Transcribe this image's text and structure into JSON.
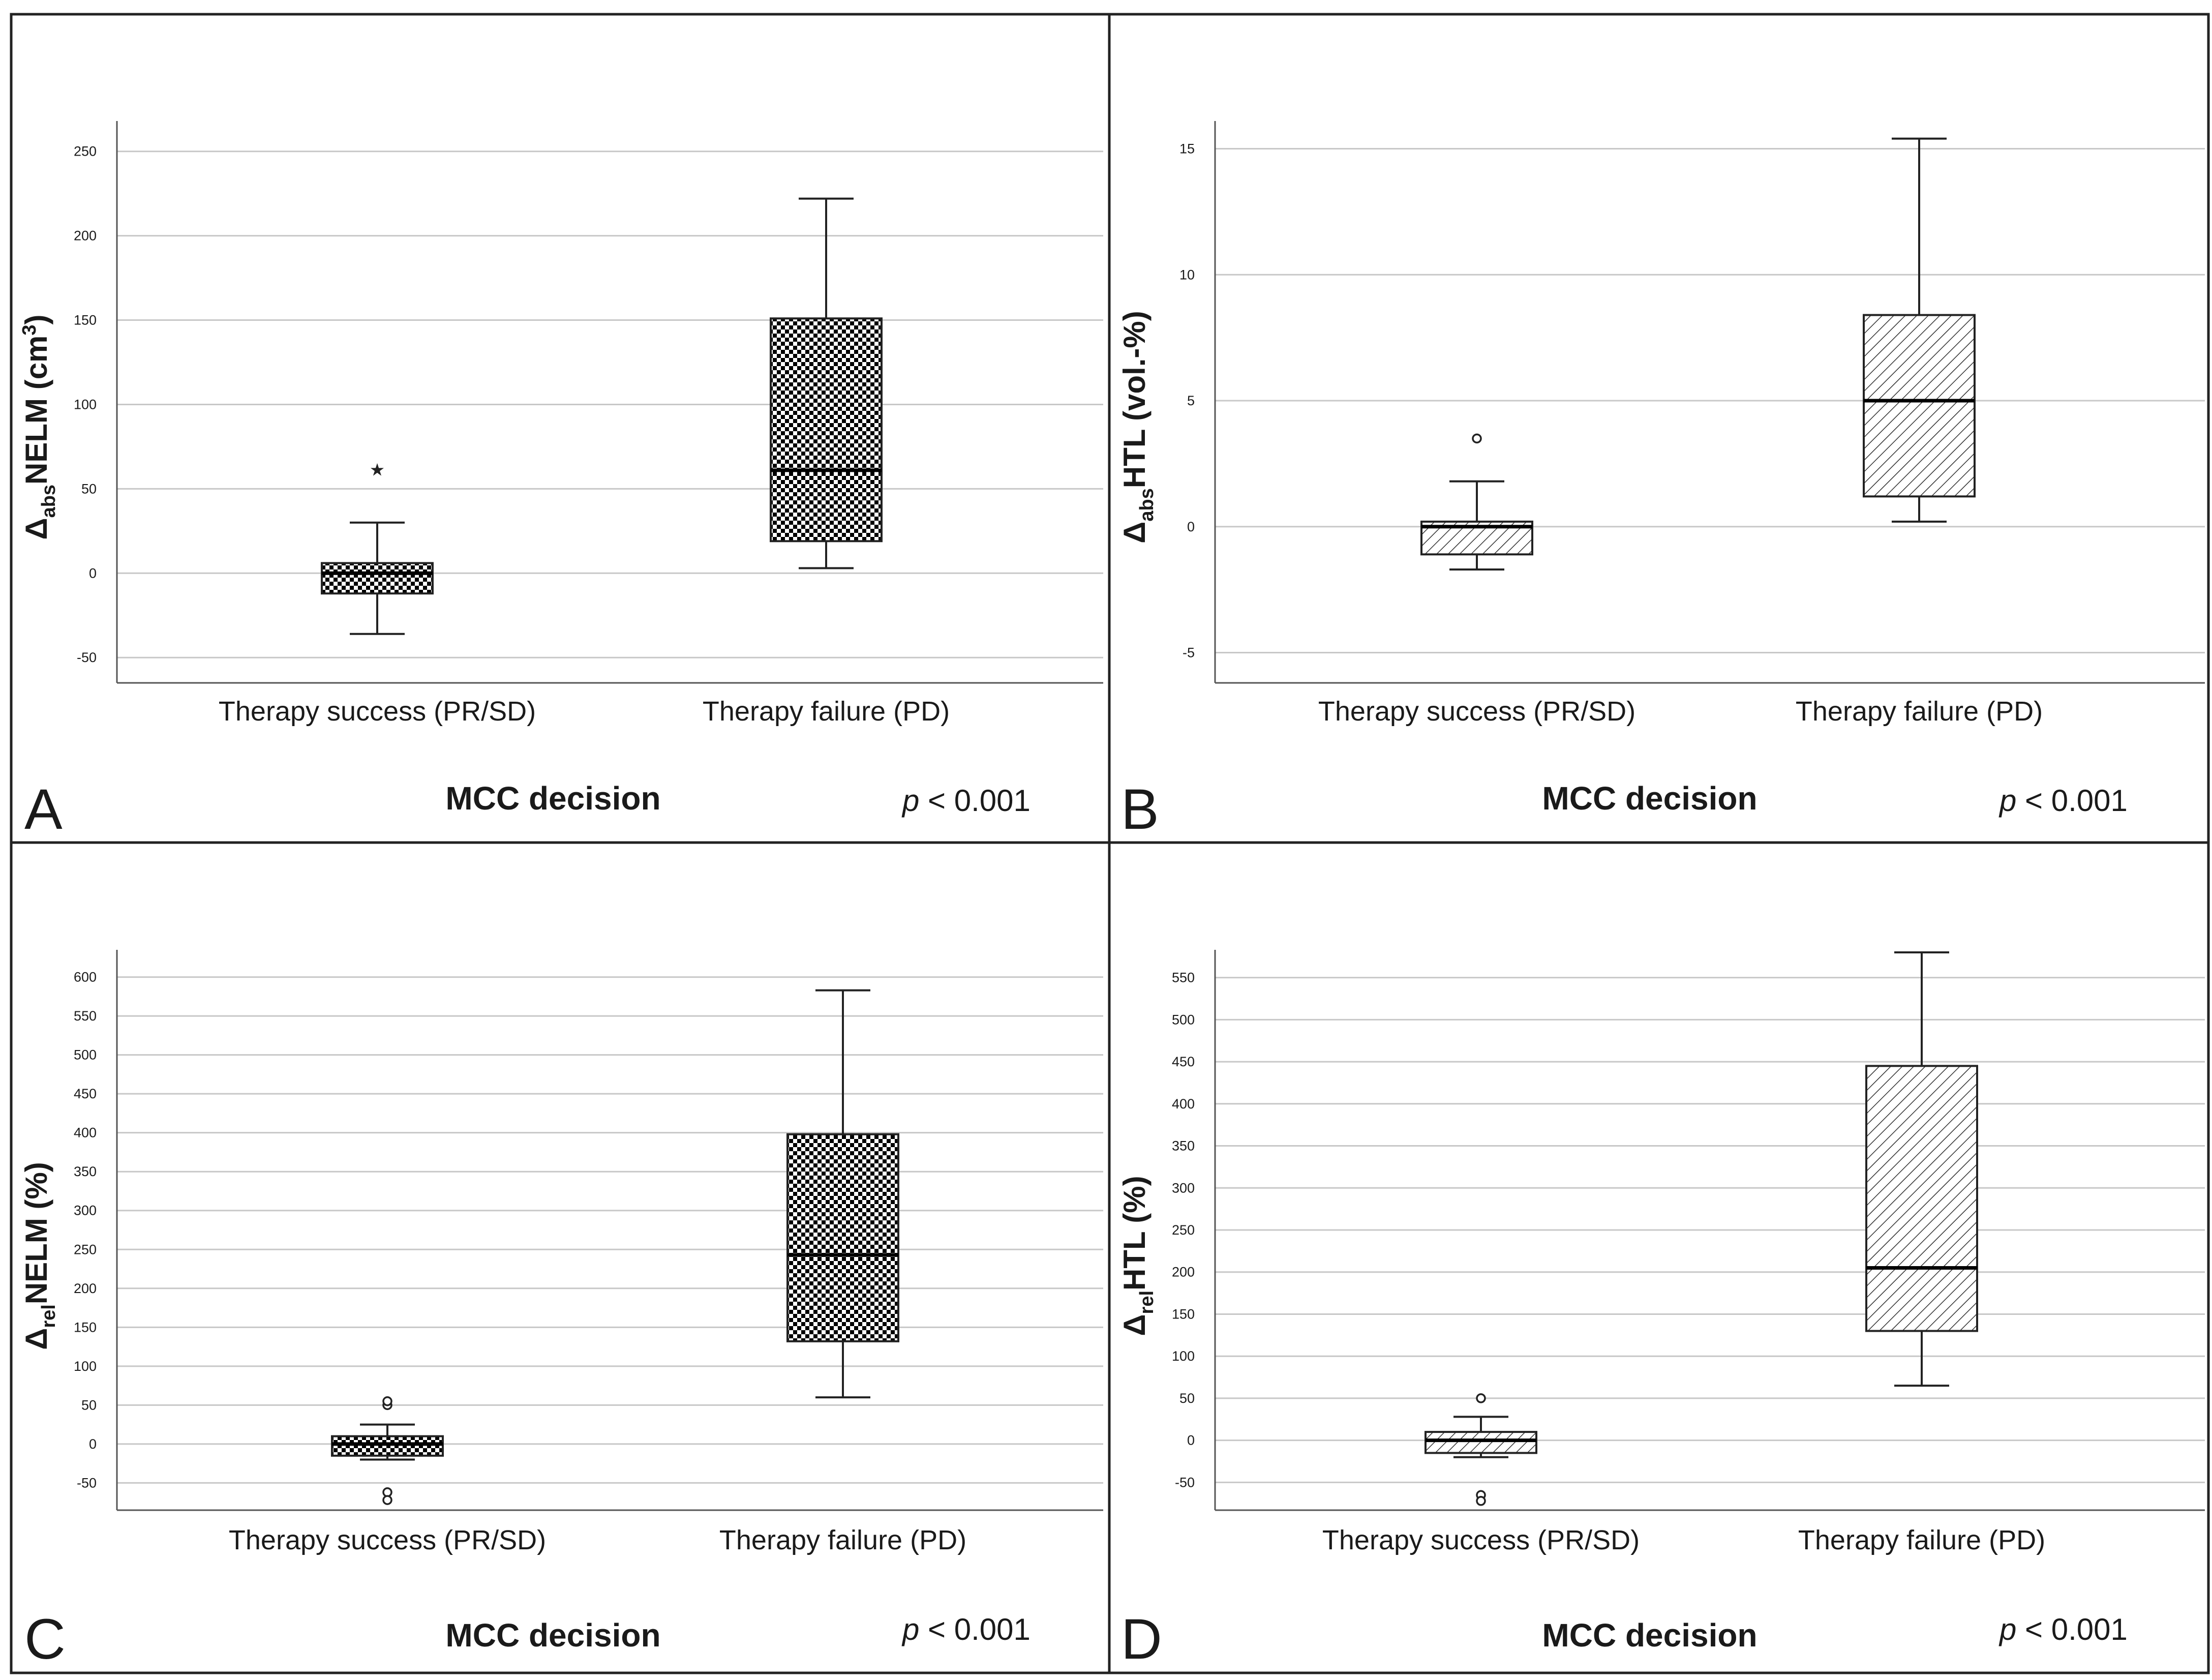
{
  "figure": {
    "title": "",
    "colors": {
      "frame": "#222222",
      "grid": "#c8c8c8",
      "axis": "#555555",
      "box_stroke": "#222222",
      "hatch": "#333333",
      "checker": "#000000",
      "text": "#1a1a1a"
    }
  },
  "chart_data": [
    {
      "panel": "A",
      "type": "boxplot",
      "title": "",
      "ylabel": {
        "delta": "Δ",
        "sub": "abs",
        "main": "NELM (cm",
        "sup": "3",
        "tail": ")"
      },
      "xlabel": "MCC decision",
      "p_value": {
        "p": "p",
        "rest": " < 0.001"
      },
      "pattern": "checker",
      "ylim": [
        -65,
        268
      ],
      "yticks": [
        -50,
        0,
        50,
        100,
        150,
        200,
        250
      ],
      "ytick_labels": [
        "-50",
        "0",
        "50",
        "100",
        "150",
        "200",
        "250"
      ],
      "categories": [
        "Therapy success (PR/SD)",
        "Therapy failure (PD)"
      ],
      "boxes": [
        {
          "category": "Therapy success (PR/SD)",
          "whisker_low": -36,
          "q1": -12,
          "median": 0,
          "q3": 6,
          "whisker_high": 30,
          "outliers": [],
          "extremes": [
            62
          ]
        },
        {
          "category": "Therapy failure (PD)",
          "whisker_low": 3,
          "q1": 19,
          "median": 61,
          "q3": 151,
          "whisker_high": 222,
          "outliers": [],
          "extremes": []
        }
      ],
      "grid": true,
      "legend": "none"
    },
    {
      "panel": "B",
      "type": "boxplot",
      "title": "",
      "ylabel": {
        "delta": "Δ",
        "sub": "abs",
        "main": "HTL (vol.-%)",
        "sup": "",
        "tail": ""
      },
      "xlabel": "MCC decision",
      "p_value": {
        "p": "p",
        "rest": " < 0.001"
      },
      "pattern": "hatch",
      "ylim": [
        -6.2,
        16.1
      ],
      "yticks": [
        -5,
        0,
        5,
        10,
        15
      ],
      "ytick_labels": [
        "-5",
        "0",
        "5",
        "10",
        "15"
      ],
      "categories": [
        "Therapy success (PR/SD)",
        "Therapy failure (PD)"
      ],
      "boxes": [
        {
          "category": "Therapy success (PR/SD)",
          "whisker_low": -1.7,
          "q1": -1.1,
          "median": 0.0,
          "q3": 0.2,
          "whisker_high": 1.8,
          "outliers": [
            3.5
          ],
          "extremes": []
        },
        {
          "category": "Therapy failure (PD)",
          "whisker_low": 0.2,
          "q1": 1.2,
          "median": 5.0,
          "q3": 8.4,
          "whisker_high": 15.4,
          "outliers": [],
          "extremes": []
        }
      ],
      "grid": true,
      "legend": "none"
    },
    {
      "panel": "C",
      "type": "boxplot",
      "title": "",
      "ylabel": {
        "delta": "Δ",
        "sub": "rel",
        "main": "NELM (%)",
        "sup": "",
        "tail": ""
      },
      "xlabel": "MCC decision",
      "p_value": {
        "p": "p",
        "rest": " < 0.001"
      },
      "pattern": "checker",
      "ylim": [
        -85,
        635
      ],
      "yticks": [
        -50,
        0,
        50,
        100,
        150,
        200,
        250,
        300,
        350,
        400,
        450,
        500,
        550,
        600
      ],
      "ytick_labels": [
        "-50",
        "0",
        "50",
        "100",
        "150",
        "200",
        "250",
        "300",
        "350",
        "400",
        "450",
        "500",
        "550",
        "600"
      ],
      "categories": [
        "Therapy success (PR/SD)",
        "Therapy failure (PD)"
      ],
      "boxes": [
        {
          "category": "Therapy success (PR/SD)",
          "whisker_low": -20,
          "q1": -15,
          "median": 0,
          "q3": 10,
          "whisker_high": 25,
          "outliers": [
            50,
            55,
            -62,
            -72
          ],
          "extremes": []
        },
        {
          "category": "Therapy failure (PD)",
          "whisker_low": 60,
          "q1": 132,
          "median": 243,
          "q3": 398,
          "whisker_high": 583,
          "outliers": [],
          "extremes": []
        }
      ],
      "grid": true,
      "legend": "none"
    },
    {
      "panel": "D",
      "type": "boxplot",
      "title": "",
      "ylabel": {
        "delta": "Δ",
        "sub": "rel",
        "main": "HTL (%)",
        "sup": "",
        "tail": ""
      },
      "xlabel": "MCC decision",
      "p_value": {
        "p": "p",
        "rest": " < 0.001"
      },
      "pattern": "hatch",
      "ylim": [
        -83,
        583
      ],
      "yticks": [
        -50,
        0,
        50,
        100,
        150,
        200,
        250,
        300,
        350,
        400,
        450,
        500,
        550
      ],
      "ytick_labels": [
        "-50",
        "0",
        "50",
        "100",
        "150",
        "200",
        "250",
        "300",
        "350",
        "400",
        "450",
        "500",
        "550"
      ],
      "categories": [
        "Therapy success (PR/SD)",
        "Therapy failure (PD)"
      ],
      "boxes": [
        {
          "category": "Therapy success (PR/SD)",
          "whisker_low": -20,
          "q1": -15,
          "median": 0,
          "q3": 10,
          "whisker_high": 28,
          "outliers": [
            50,
            -65,
            -72
          ],
          "extremes": []
        },
        {
          "category": "Therapy failure (PD)",
          "whisker_low": 65,
          "q1": 130,
          "median": 205,
          "q3": 445,
          "whisker_high": 580,
          "outliers": [],
          "extremes": []
        }
      ],
      "grid": true,
      "legend": "none"
    }
  ]
}
